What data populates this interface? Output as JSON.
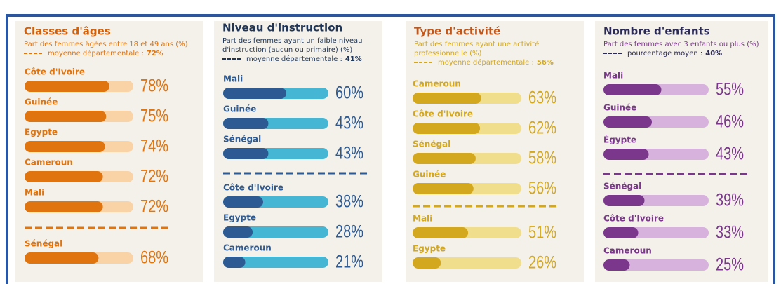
{
  "chart_data": [
    {
      "type": "bar",
      "title": "Classes d'âges",
      "subtitle": [
        "Part des femmes âgées entre 18 et 49 ans (%)"
      ],
      "average_text": "moyenne départementale :",
      "average": {
        "value": 72,
        "label": "72%"
      },
      "categories": [
        "Côte d'Ivoire",
        "Guinée",
        "Egypte",
        "Cameroun",
        "Mali",
        "Sénégal"
      ],
      "values": [
        78,
        75,
        74,
        72,
        72,
        68
      ],
      "value_labels": [
        "78%",
        "75%",
        "74%",
        "72%",
        "72%",
        "68%"
      ],
      "xlim": [
        0,
        100
      ],
      "color": "#e0740f",
      "track_color": "#f9d2a6",
      "title_color": "#d0600c"
    },
    {
      "type": "bar",
      "title": "Niveau d'instruction",
      "subtitle": [
        "Part des femmes ayant un faible niveau",
        "d'instruction (aucun ou primaire) (%)"
      ],
      "average_text": "moyenne départementale :",
      "average": {
        "value": 41,
        "label": "41%"
      },
      "categories": [
        "Mali",
        "Guinée",
        "Sénégal",
        "Côte d'Ivoire",
        "Egypte",
        "Cameroun"
      ],
      "values": [
        60,
        43,
        43,
        38,
        28,
        21
      ],
      "value_labels": [
        "60%",
        "43%",
        "43%",
        "38%",
        "28%",
        "21%"
      ],
      "xlim": [
        0,
        100
      ],
      "color": "#2d5a93",
      "track_color": "#45b6d3",
      "title_color": "#1f3658"
    },
    {
      "type": "bar",
      "title": "Type d'activité",
      "subtitle": [
        "Part des femmes ayant une activité",
        "professionnelle (%)"
      ],
      "average_text": "moyenne départementale :",
      "average": {
        "value": 56,
        "label": "56%"
      },
      "categories": [
        "Cameroun",
        "Côte d'Ivoire",
        "Sénégal",
        "Guinée",
        "Mali",
        "Egypte"
      ],
      "values": [
        63,
        62,
        58,
        56,
        51,
        26
      ],
      "value_labels": [
        "63%",
        "62%",
        "58%",
        "56%",
        "51%",
        "26%"
      ],
      "xlim": [
        0,
        100
      ],
      "color": "#d3a71e",
      "track_color": "#f1de8c",
      "title_color": "#c0561a"
    },
    {
      "type": "bar",
      "title": "Nombre d'enfants",
      "subtitle": [
        "Part des femmes avec 3 enfants ou plus (%)"
      ],
      "average_text": "pourcentage moyen :",
      "average": {
        "value": 40,
        "label": "40%"
      },
      "categories": [
        "Mali",
        "Guinée",
        "Égypte",
        "Sénégal",
        "Côte d'Ivoire",
        "Cameroun"
      ],
      "values": [
        55,
        46,
        43,
        39,
        33,
        25
      ],
      "value_labels": [
        "55%",
        "46%",
        "43%",
        "39%",
        "33%",
        "25%"
      ],
      "xlim": [
        0,
        100
      ],
      "color": "#7a378b",
      "track_color": "#d7b2dd",
      "title_color": "#2b2a55"
    }
  ]
}
